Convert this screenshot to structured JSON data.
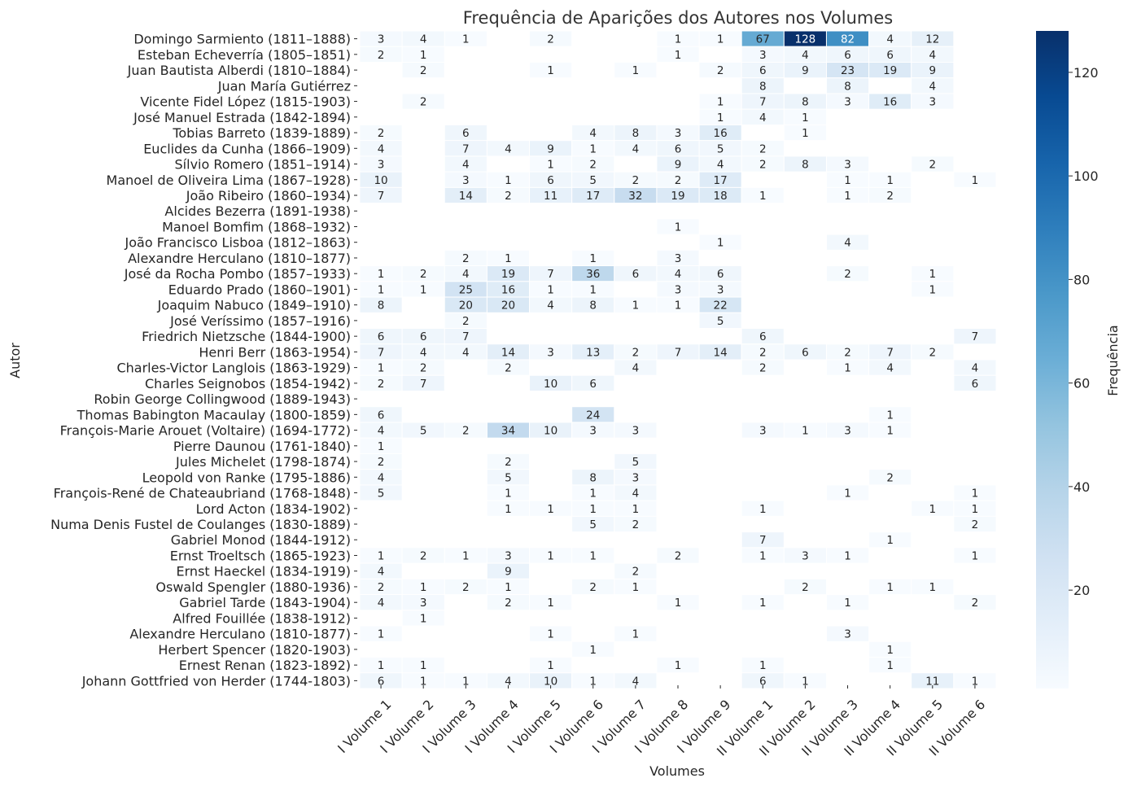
{
  "chart_data": {
    "type": "heatmap",
    "title": "Frequência de Aparições dos Autores nos Volumes",
    "xlabel": "Volumes",
    "ylabel": "Autor",
    "colorbar_label": "Frequência",
    "colorbar_ticks": [
      20,
      40,
      60,
      80,
      100,
      120
    ],
    "value_range": [
      1,
      128
    ],
    "colormap": "Blues",
    "x": [
      "I Volume 1",
      "I Volume 2",
      "I Volume 3",
      "I Volume 4",
      "I Volume 5",
      "I Volume 6",
      "I Volume 7",
      "I Volume 8",
      "I Volume 9",
      "II Volume 1",
      "II Volume 2",
      "II Volume 3",
      "II Volume 4",
      "II Volume 5",
      "II Volume 6"
    ],
    "y": [
      "Domingo Sarmiento (1811–1888)",
      "Esteban Echeverría (1805–1851)",
      "Juan Bautista Alberdi (1810–1884)",
      "Juan María Gutiérrez",
      "Vicente Fidel López (1815-1903)",
      "José Manuel Estrada (1842-1894)",
      "Tobias Barreto (1839-1889)",
      "Euclides da Cunha (1866–1909)",
      "Sílvio Romero (1851–1914)",
      "Manoel de Oliveira Lima (1867–1928)",
      "João Ribeiro (1860–1934)",
      "Alcides Bezerra (1891-1938)",
      "Manoel Bomfim (1868–1932)",
      "João Francisco Lisboa (1812–1863)",
      "Alexandre Herculano (1810–1877)",
      "José da Rocha Pombo (1857–1933)",
      "Eduardo Prado (1860–1901)",
      "Joaquim Nabuco (1849–1910)",
      "José Veríssimo (1857–1916)",
      "Friedrich Nietzsche (1844-1900)",
      "Henri Berr (1863-1954)",
      "Charles-Victor Langlois (1863-1929)",
      "Charles Seignobos (1854-1942)",
      "Robin George Collingwood (1889-1943)",
      "Thomas Babington Macaulay (1800-1859)",
      "François-Marie Arouet (Voltaire) (1694-1772)",
      "Pierre Daunou (1761-1840)",
      "Jules Michelet (1798-1874)",
      "Leopold von Ranke (1795-1886)",
      "François-René de Chateaubriand (1768-1848)",
      "Lord Acton (1834-1902)",
      "Numa Denis Fustel de Coulanges (1830-1889)",
      "Gabriel Monod (1844-1912)",
      "Ernst Troeltsch (1865-1923)",
      "Ernst Haeckel (1834-1919)",
      "Oswald Spengler (1880-1936)",
      "Gabriel Tarde (1843-1904)",
      "Alfred Fouillée (1838-1912)",
      "Alexandre Herculano (1810-1877)",
      "Herbert Spencer (1820-1903)",
      "Ernest Renan (1823-1892)",
      "Johann Gottfried von Herder (1744-1803)"
    ],
    "values": [
      [
        3,
        4,
        1,
        0,
        2,
        0,
        0,
        1,
        1,
        67,
        128,
        82,
        4,
        12,
        0
      ],
      [
        2,
        1,
        0,
        0,
        0,
        0,
        0,
        1,
        0,
        3,
        4,
        6,
        6,
        4,
        0
      ],
      [
        0,
        2,
        0,
        0,
        1,
        0,
        1,
        0,
        2,
        6,
        9,
        23,
        19,
        9,
        0
      ],
      [
        0,
        0,
        0,
        0,
        0,
        0,
        0,
        0,
        0,
        8,
        0,
        8,
        0,
        4,
        0
      ],
      [
        0,
        2,
        0,
        0,
        0,
        0,
        0,
        0,
        1,
        7,
        8,
        3,
        16,
        3,
        0
      ],
      [
        0,
        0,
        0,
        0,
        0,
        0,
        0,
        0,
        1,
        4,
        1,
        0,
        0,
        0,
        0
      ],
      [
        2,
        0,
        6,
        0,
        0,
        4,
        8,
        3,
        16,
        0,
        1,
        0,
        0,
        0,
        0
      ],
      [
        4,
        0,
        7,
        4,
        9,
        1,
        4,
        6,
        5,
        2,
        0,
        0,
        0,
        0,
        0
      ],
      [
        3,
        0,
        4,
        0,
        1,
        2,
        0,
        9,
        4,
        2,
        8,
        3,
        0,
        2,
        0
      ],
      [
        10,
        0,
        3,
        1,
        6,
        5,
        2,
        2,
        17,
        0,
        0,
        1,
        1,
        0,
        1
      ],
      [
        7,
        0,
        14,
        2,
        11,
        17,
        32,
        19,
        18,
        1,
        0,
        1,
        2,
        0,
        0
      ],
      [
        0,
        0,
        0,
        0,
        0,
        0,
        0,
        0,
        0,
        0,
        0,
        0,
        0,
        0,
        0
      ],
      [
        0,
        0,
        0,
        0,
        0,
        0,
        0,
        1,
        0,
        0,
        0,
        0,
        0,
        0,
        0
      ],
      [
        0,
        0,
        0,
        0,
        0,
        0,
        0,
        0,
        1,
        0,
        0,
        4,
        0,
        0,
        0
      ],
      [
        0,
        0,
        2,
        1,
        0,
        1,
        0,
        3,
        0,
        0,
        0,
        0,
        0,
        0,
        0
      ],
      [
        1,
        2,
        4,
        19,
        7,
        36,
        6,
        4,
        6,
        0,
        0,
        2,
        0,
        1,
        0
      ],
      [
        1,
        1,
        25,
        16,
        1,
        1,
        0,
        3,
        3,
        0,
        0,
        0,
        0,
        1,
        0
      ],
      [
        8,
        0,
        20,
        20,
        4,
        8,
        1,
        1,
        22,
        0,
        0,
        0,
        0,
        0,
        0
      ],
      [
        0,
        0,
        2,
        0,
        0,
        0,
        0,
        0,
        5,
        0,
        0,
        0,
        0,
        0,
        0
      ],
      [
        6,
        6,
        7,
        0,
        0,
        0,
        0,
        0,
        0,
        6,
        0,
        0,
        0,
        0,
        7
      ],
      [
        7,
        4,
        4,
        14,
        3,
        13,
        2,
        7,
        14,
        2,
        6,
        2,
        7,
        2,
        0
      ],
      [
        1,
        2,
        0,
        2,
        0,
        0,
        4,
        0,
        0,
        2,
        0,
        1,
        4,
        0,
        4
      ],
      [
        2,
        7,
        0,
        0,
        10,
        6,
        0,
        0,
        0,
        0,
        0,
        0,
        0,
        0,
        6
      ],
      [
        0,
        0,
        0,
        0,
        0,
        0,
        0,
        0,
        0,
        0,
        0,
        0,
        0,
        0,
        0
      ],
      [
        6,
        0,
        0,
        0,
        0,
        24,
        0,
        0,
        0,
        0,
        0,
        0,
        1,
        0,
        0
      ],
      [
        4,
        5,
        2,
        34,
        10,
        3,
        3,
        0,
        0,
        3,
        1,
        3,
        1,
        0,
        0
      ],
      [
        1,
        0,
        0,
        0,
        0,
        0,
        0,
        0,
        0,
        0,
        0,
        0,
        0,
        0,
        0
      ],
      [
        2,
        0,
        0,
        2,
        0,
        0,
        5,
        0,
        0,
        0,
        0,
        0,
        0,
        0,
        0
      ],
      [
        4,
        0,
        0,
        5,
        0,
        8,
        3,
        0,
        0,
        0,
        0,
        0,
        2,
        0,
        0
      ],
      [
        5,
        0,
        0,
        1,
        0,
        1,
        4,
        0,
        0,
        0,
        0,
        1,
        0,
        0,
        1
      ],
      [
        0,
        0,
        0,
        1,
        1,
        1,
        1,
        0,
        0,
        1,
        0,
        0,
        0,
        1,
        1
      ],
      [
        0,
        0,
        0,
        0,
        0,
        5,
        2,
        0,
        0,
        0,
        0,
        0,
        0,
        0,
        2
      ],
      [
        0,
        0,
        0,
        0,
        0,
        0,
        0,
        0,
        0,
        7,
        0,
        0,
        1,
        0,
        0
      ],
      [
        1,
        2,
        1,
        3,
        1,
        1,
        0,
        2,
        0,
        1,
        3,
        1,
        0,
        0,
        1
      ],
      [
        4,
        0,
        0,
        9,
        0,
        0,
        2,
        0,
        0,
        0,
        0,
        0,
        0,
        0,
        0
      ],
      [
        2,
        1,
        2,
        1,
        0,
        2,
        1,
        0,
        0,
        0,
        2,
        0,
        1,
        1,
        0
      ],
      [
        4,
        3,
        0,
        2,
        1,
        0,
        0,
        1,
        0,
        1,
        0,
        1,
        0,
        0,
        2
      ],
      [
        0,
        1,
        0,
        0,
        0,
        0,
        0,
        0,
        0,
        0,
        0,
        0,
        0,
        0,
        0
      ],
      [
        1,
        0,
        0,
        0,
        1,
        0,
        1,
        0,
        0,
        0,
        0,
        3,
        0,
        0,
        0
      ],
      [
        0,
        0,
        0,
        0,
        0,
        1,
        0,
        0,
        0,
        0,
        0,
        0,
        1,
        0,
        0
      ],
      [
        1,
        1,
        0,
        0,
        1,
        0,
        0,
        1,
        0,
        1,
        0,
        0,
        1,
        0,
        0
      ],
      [
        6,
        1,
        1,
        4,
        10,
        1,
        4,
        0,
        0,
        6,
        1,
        0,
        0,
        11,
        1
      ]
    ]
  }
}
